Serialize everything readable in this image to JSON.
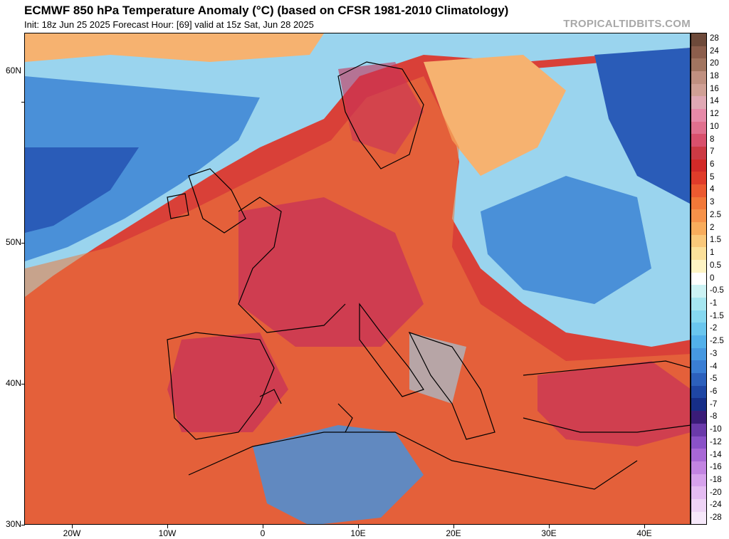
{
  "header": {
    "title": "ECMWF 850 hPa Temperature Anomaly (°C) (based on CFSR 1981-2010 Climatology)",
    "subtitle": "Init: 18z Jun 25 2025   Forecast Hour: [69]   valid at 15z Sat, Jun 28 2025",
    "brand": "TROPICALTIDBITS.COM"
  },
  "map": {
    "lat_labels": [
      "60N",
      "50N",
      "40N",
      "30N"
    ],
    "lon_labels": [
      "20W",
      "10W",
      "0",
      "10E",
      "20E",
      "30E",
      "40E"
    ],
    "colors": {
      "hot_extreme": "#c83258",
      "hot": "#d94038",
      "warm": "#ec7a3c",
      "mild": "#f6b270",
      "cool": "#9ad4ee",
      "cold": "#4a90d8",
      "very_cold": "#2a5cb8",
      "land_outline": "#000000"
    }
  },
  "colorbar": {
    "labels": [
      "28",
      "24",
      "20",
      "18",
      "16",
      "14",
      "12",
      "10",
      "8",
      "7",
      "6",
      "5",
      "4",
      "3",
      "2.5",
      "2",
      "1.5",
      "1",
      "0.5",
      "0",
      "-0.5",
      "-1",
      "-1.5",
      "-2",
      "-2.5",
      "-3",
      "-4",
      "-5",
      "-6",
      "-7",
      "-8",
      "-10",
      "-12",
      "-14",
      "-16",
      "-18",
      "-20",
      "-24",
      "-28"
    ],
    "colors": [
      "#6e4a3a",
      "#8c5e4c",
      "#a27560",
      "#c09080",
      "#d0a095",
      "#e0a8b4",
      "#e68aa8",
      "#e0708e",
      "#d8506c",
      "#cc3a44",
      "#d22a28",
      "#e03c2a",
      "#ec5a30",
      "#f27838",
      "#f6924a",
      "#f8ac5c",
      "#fac87a",
      "#fce09a",
      "#fef4c4",
      "#ffffff",
      "#ccf2f4",
      "#a6e6f0",
      "#86d8f0",
      "#6ac6ee",
      "#52b0ea",
      "#4698e0",
      "#3a7ed4",
      "#2c60bc",
      "#1e46a4",
      "#162e88",
      "#3a1c78",
      "#6a3aaa",
      "#8a52c8",
      "#a868d6",
      "#c284e2",
      "#d6a2ec",
      "#e4bcf2",
      "#eed4f6",
      "#f6e8fa"
    ]
  }
}
